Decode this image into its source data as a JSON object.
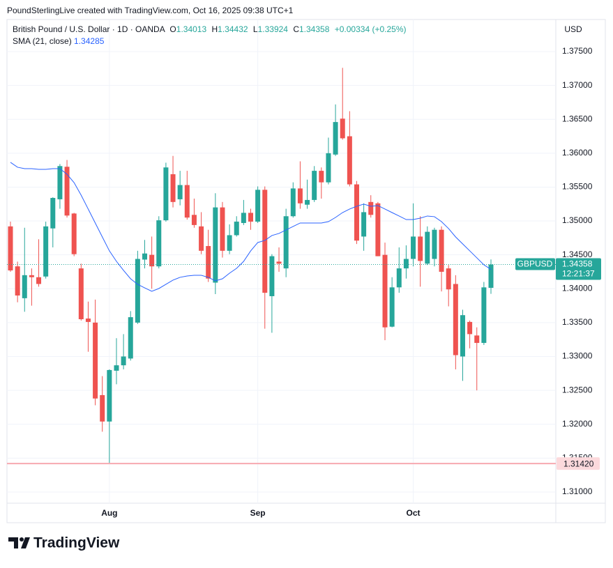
{
  "attribution": "PoundSterlingLive created with TradingView.com, Oct 16, 2025 09:38 UTC+1",
  "logo": "TradingView",
  "chart_data": {
    "type": "candlestick",
    "title": "British Pound / U.S. Dollar · 1D · OANDA",
    "ohlc_labels": [
      "O",
      "H",
      "L",
      "C"
    ],
    "change": "+0.00334 (+0.25%)",
    "symbol": "GBPUSD",
    "countdown": "12:21:37",
    "currency": "USD",
    "up_color": "#26a69a",
    "down_color": "#ef5350",
    "grid": true,
    "categories": [
      null,
      null,
      null,
      null,
      null,
      null,
      null,
      null,
      null,
      null,
      null,
      null,
      null,
      null,
      "Aug",
      null,
      null,
      null,
      null,
      null,
      null,
      null,
      null,
      null,
      null,
      null,
      null,
      null,
      null,
      null,
      null,
      null,
      null,
      null,
      null,
      "Sep",
      null,
      null,
      null,
      null,
      null,
      null,
      null,
      null,
      null,
      null,
      null,
      null,
      null,
      null,
      null,
      null,
      null,
      null,
      null,
      null,
      null,
      "Oct",
      null,
      null,
      null,
      null,
      null,
      null,
      null,
      null,
      null,
      null,
      null
    ],
    "open": [
      1.3492,
      1.3433,
      1.3386,
      1.342,
      1.3417,
      1.3418,
      1.3489,
      1.3532,
      1.358,
      1.3511,
      1.343,
      1.3356,
      1.335,
      1.3243,
      1.3204,
      1.3279,
      1.3287,
      1.3297,
      1.335,
      1.3443,
      1.345,
      1.3433,
      1.3501,
      1.3569,
      1.3532,
      1.3553,
      1.3509,
      1.3492,
      1.3463,
      1.3409,
      1.352,
      1.3456,
      1.3479,
      1.3497,
      1.3512,
      1.3499,
      1.3546,
      1.3389,
      1.344,
      1.343,
      1.3507,
      1.3548,
      1.3524,
      1.3531,
      1.3574,
      1.3557,
      1.3598,
      1.3651,
      1.3625,
      1.3554,
      1.3477,
      1.3528,
      1.3526,
      1.345,
      1.3344,
      1.3402,
      1.343,
      1.3444,
      1.3477,
      1.3437,
      1.3444,
      1.3487,
      1.343,
      1.3407,
      1.33,
      1.3351,
      1.3331,
      1.332,
      1.34013
    ],
    "high": [
      1.3499,
      1.344,
      1.349,
      1.343,
      1.3473,
      1.3499,
      1.3535,
      1.3584,
      1.359,
      1.3512,
      1.3437,
      1.3381,
      1.3384,
      1.3271,
      1.3281,
      1.3327,
      1.3333,
      1.3367,
      1.3456,
      1.3472,
      1.3477,
      1.3507,
      1.3586,
      1.3596,
      1.3574,
      1.3574,
      1.3533,
      1.3513,
      1.3487,
      1.3541,
      1.3528,
      1.3495,
      1.3507,
      1.3531,
      1.3518,
      1.3551,
      1.3551,
      1.3451,
      1.3461,
      1.3518,
      1.3557,
      1.3588,
      1.3561,
      1.3581,
      1.3579,
      1.3623,
      1.3672,
      1.3726,
      1.3662,
      1.3559,
      1.3526,
      1.3538,
      1.3528,
      1.3468,
      1.3417,
      1.3461,
      1.3464,
      1.3526,
      1.3507,
      1.3492,
      1.349,
      1.3492,
      1.3435,
      1.342,
      1.3369,
      1.3353,
      1.3343,
      1.341,
      1.34432
    ],
    "low": [
      1.3425,
      1.338,
      1.3366,
      1.3375,
      1.3403,
      1.3415,
      1.3461,
      1.3518,
      1.3505,
      1.3448,
      1.3353,
      1.3307,
      1.3228,
      1.3189,
      1.3142,
      1.3259,
      1.3281,
      1.3294,
      1.3348,
      1.343,
      1.34,
      1.343,
      1.3499,
      1.352,
      1.3523,
      1.3502,
      1.349,
      1.3451,
      1.341,
      1.3392,
      1.3446,
      1.3451,
      1.3477,
      1.3494,
      1.3487,
      1.3497,
      1.3341,
      1.3335,
      1.3425,
      1.3417,
      1.3505,
      1.3518,
      1.3518,
      1.3528,
      1.3533,
      1.3554,
      1.3596,
      1.362,
      1.3551,
      1.3466,
      1.3456,
      1.3505,
      1.3448,
      1.3324,
      1.3343,
      1.3394,
      1.3415,
      1.3433,
      1.3403,
      1.3435,
      1.3433,
      1.3396,
      1.3374,
      1.3281,
      1.3264,
      1.3312,
      1.325,
      1.3317,
      1.33924
    ],
    "close": [
      1.3427,
      1.339,
      1.342,
      1.3417,
      1.3407,
      1.3492,
      1.3534,
      1.3581,
      1.3508,
      1.3451,
      1.3355,
      1.3351,
      1.3238,
      1.3204,
      1.328,
      1.3287,
      1.33,
      1.3358,
      1.3444,
      1.3452,
      1.3433,
      1.3501,
      1.3579,
      1.3528,
      1.3553,
      1.3505,
      1.3494,
      1.3456,
      1.3415,
      1.352,
      1.3456,
      1.3479,
      1.3499,
      1.3512,
      1.3499,
      1.3546,
      1.3394,
      1.3448,
      1.3437,
      1.3507,
      1.3548,
      1.3526,
      1.3531,
      1.3574,
      1.3557,
      1.36,
      1.3646,
      1.3622,
      1.3554,
      1.3471,
      1.3513,
      1.3509,
      1.3448,
      1.3343,
      1.3402,
      1.343,
      1.3444,
      1.3477,
      1.3441,
      1.3484,
      1.3487,
      1.3425,
      1.3399,
      1.3302,
      1.3361,
      1.3333,
      1.332,
      1.3402,
      1.34358
    ],
    "series": [
      {
        "name": "SMA (21, close)",
        "color": "#2962ff",
        "values": [
          1.35865,
          1.35793,
          1.35772,
          1.35772,
          1.35762,
          1.35762,
          1.35772,
          1.35772,
          1.3569,
          1.35566,
          1.35381,
          1.35176,
          1.3497,
          1.34764,
          1.34559,
          1.34404,
          1.34271,
          1.34147,
          1.34065,
          1.34013,
          1.33962,
          1.34003,
          1.34065,
          1.34127,
          1.34168,
          1.34188,
          1.34198,
          1.34198,
          1.34168,
          1.34116,
          1.34147,
          1.34229,
          1.34301,
          1.34404,
          1.34559,
          1.34682,
          1.34713,
          1.34785,
          1.34816,
          1.34867,
          1.34919,
          1.3497,
          1.3497,
          1.3497,
          1.3497,
          1.3499,
          1.35052,
          1.35124,
          1.35176,
          1.35217,
          1.35248,
          1.35217,
          1.35227,
          1.35176,
          1.35124,
          1.35073,
          1.35021,
          1.35021,
          1.35042,
          1.35073,
          1.35063,
          1.3499,
          1.34888,
          1.34764,
          1.34661,
          1.34559,
          1.34456,
          1.34353,
          1.34285
        ]
      }
    ],
    "hline": {
      "value": 1.3142,
      "label": "1.31420",
      "color": "#f7a9b0"
    },
    "ylim": [
      1.30835,
      1.37973
    ],
    "yticks": [
      {
        "value": 1.31,
        "label": "1.31000"
      },
      {
        "value": 1.315,
        "label": "1.31500"
      },
      {
        "value": 1.32,
        "label": "1.32000"
      },
      {
        "value": 1.325,
        "label": "1.32500"
      },
      {
        "value": 1.33,
        "label": "1.33000"
      },
      {
        "value": 1.335,
        "label": "1.33500"
      },
      {
        "value": 1.34,
        "label": "1.34000"
      },
      {
        "value": 1.345,
        "label": "1.34500"
      },
      {
        "value": 1.35,
        "label": "1.35000"
      },
      {
        "value": 1.355,
        "label": "1.35500"
      },
      {
        "value": 1.36,
        "label": "1.36000"
      },
      {
        "value": 1.365,
        "label": "1.36500"
      },
      {
        "value": 1.37,
        "label": "1.37000"
      },
      {
        "value": 1.375,
        "label": "1.37500"
      }
    ]
  }
}
